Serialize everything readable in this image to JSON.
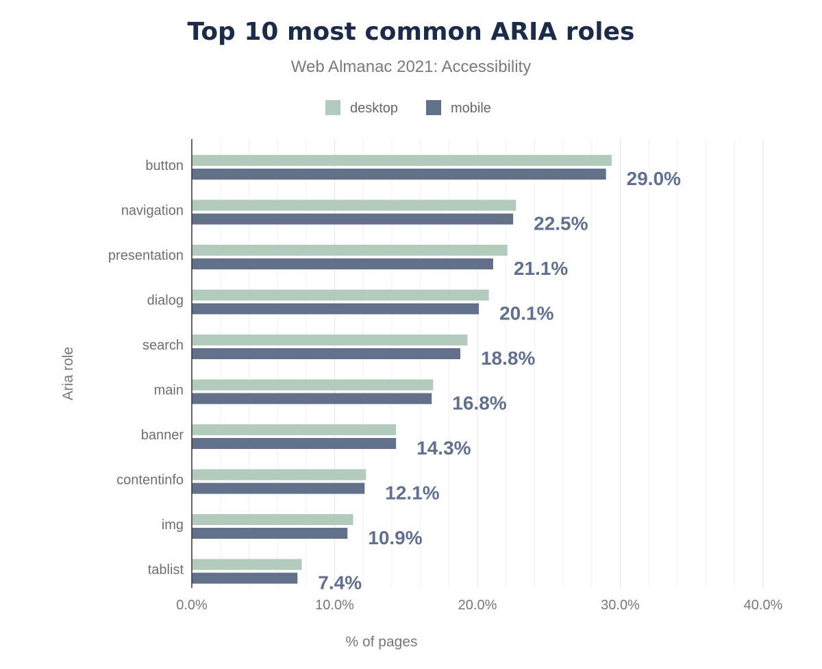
{
  "chart_data": {
    "type": "bar",
    "orientation": "horizontal",
    "title": "Top 10 most common ARIA roles",
    "subtitle": "Web Almanac 2021: Accessibility",
    "xlabel": "% of pages",
    "ylabel": "Aria role",
    "categories": [
      "button",
      "navigation",
      "presentation",
      "dialog",
      "search",
      "main",
      "banner",
      "contentinfo",
      "img",
      "tablist"
    ],
    "series": [
      {
        "name": "desktop",
        "color": "#b2cbbd",
        "values": [
          29.4,
          22.7,
          22.1,
          20.8,
          19.3,
          16.9,
          14.3,
          12.2,
          11.3,
          7.7
        ]
      },
      {
        "name": "mobile",
        "color": "#637089",
        "values": [
          29.0,
          22.5,
          21.1,
          20.1,
          18.8,
          16.8,
          14.3,
          12.1,
          10.9,
          7.4
        ]
      }
    ],
    "data_labels": [
      "29.0%",
      "22.5%",
      "21.1%",
      "20.1%",
      "18.8%",
      "16.8%",
      "14.3%",
      "12.1%",
      "10.9%",
      "7.4%"
    ],
    "xlim": [
      0,
      40
    ],
    "xticks": [
      0,
      10,
      20,
      30,
      40
    ],
    "xtick_labels": [
      "0.0%",
      "10.0%",
      "20.0%",
      "30.0%",
      "40.0%"
    ],
    "grid": true,
    "legend_position": "top-center"
  }
}
